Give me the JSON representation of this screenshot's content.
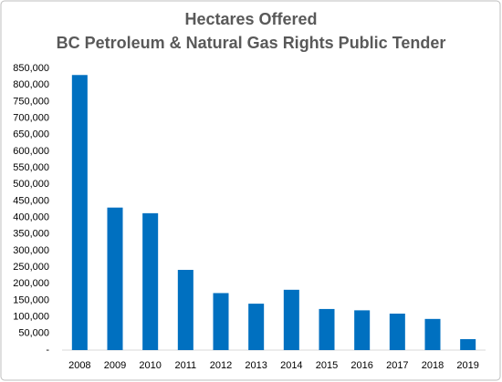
{
  "chart_data": {
    "type": "bar",
    "title": "Hectares Offered",
    "subtitle": "BC Petroleum & Natural Gas Rights Public Tender",
    "categories": [
      "2008",
      "2009",
      "2010",
      "2011",
      "2012",
      "2013",
      "2014",
      "2015",
      "2016",
      "2017",
      "2018",
      "2019"
    ],
    "values": [
      830000,
      430000,
      413000,
      242000,
      172000,
      140000,
      182000,
      124000,
      120000,
      110000,
      94000,
      33000
    ],
    "color": "#0070c0",
    "ylim": [
      0,
      850000
    ],
    "yticks": [
      {
        "value": 0,
        "label": "-"
      },
      {
        "value": 50000,
        "label": "50,000"
      },
      {
        "value": 100000,
        "label": "100,000"
      },
      {
        "value": 150000,
        "label": "150,000"
      },
      {
        "value": 200000,
        "label": "200,000"
      },
      {
        "value": 250000,
        "label": "250,000"
      },
      {
        "value": 300000,
        "label": "300,000"
      },
      {
        "value": 350000,
        "label": "350,000"
      },
      {
        "value": 400000,
        "label": "400,000"
      },
      {
        "value": 450000,
        "label": "450,000"
      },
      {
        "value": 500000,
        "label": "500,000"
      },
      {
        "value": 550000,
        "label": "550,000"
      },
      {
        "value": 600000,
        "label": "600,000"
      },
      {
        "value": 650000,
        "label": "650,000"
      },
      {
        "value": 700000,
        "label": "700,000"
      },
      {
        "value": 750000,
        "label": "750,000"
      },
      {
        "value": 800000,
        "label": "800,000"
      },
      {
        "value": 850000,
        "label": "850,000"
      }
    ],
    "grid": false
  }
}
